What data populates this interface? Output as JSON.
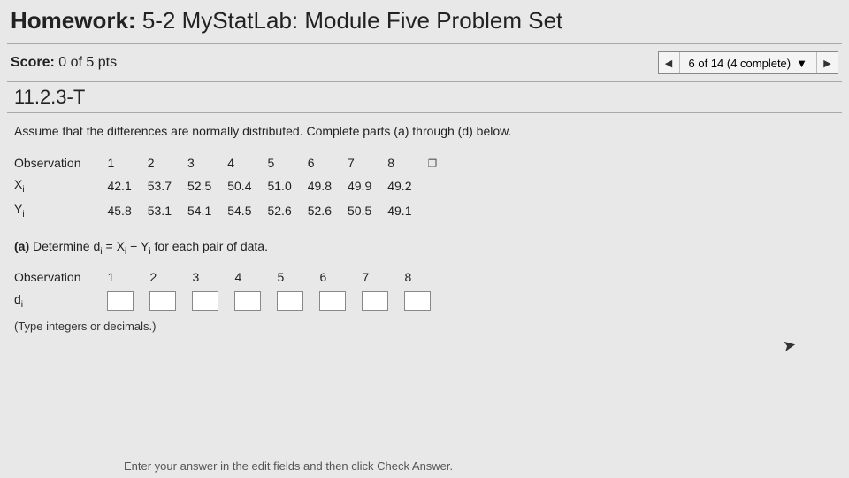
{
  "header": {
    "label": "Homework:",
    "title": "5-2 MyStatLab: Module Five Problem Set"
  },
  "score": {
    "label": "Score:",
    "value": "0 of 5 pts"
  },
  "nav": {
    "status": "6 of 14 (4 complete)"
  },
  "problem_id": "11.2.3-T",
  "instruction": "Assume that the differences are normally distributed. Complete parts (a) through (d) below.",
  "table": {
    "row_labels": [
      "Observation",
      "Xᵢ",
      "Yᵢ"
    ],
    "observations": [
      "1",
      "2",
      "3",
      "4",
      "5",
      "6",
      "7",
      "8"
    ],
    "x": [
      "42.1",
      "53.7",
      "52.5",
      "50.4",
      "51.0",
      "49.8",
      "49.9",
      "49.2"
    ],
    "y": [
      "45.8",
      "53.1",
      "54.1",
      "54.5",
      "52.6",
      "52.6",
      "50.5",
      "49.1"
    ]
  },
  "part_a": {
    "label": "(a)",
    "text": "Determine dᵢ = Xᵢ − Yᵢ for each pair of data.",
    "row_labels": [
      "Observation",
      "dᵢ"
    ],
    "observations": [
      "1",
      "2",
      "3",
      "4",
      "5",
      "6",
      "7",
      "8"
    ],
    "hint": "(Type integers or decimals.)"
  },
  "footer": "Enter your answer in the edit fields and then click Check Answer."
}
